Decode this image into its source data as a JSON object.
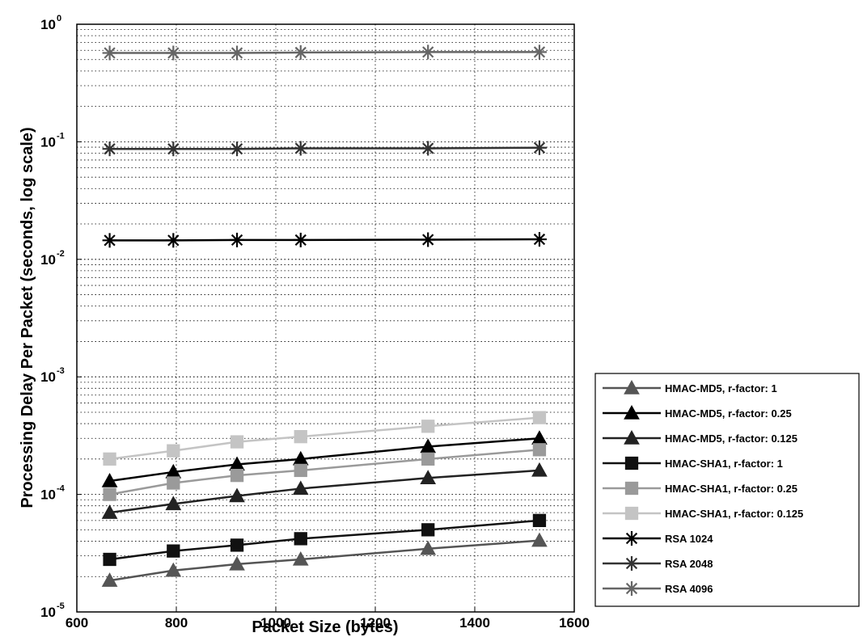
{
  "chart_data": {
    "type": "line",
    "title": "",
    "xlabel": "Packet Size (bytes)",
    "ylabel": "Processing Delay Per Packet (seconds, log scale)",
    "xlim": [
      600,
      1600
    ],
    "ylim": [
      1e-05,
      1
    ],
    "yscale": "log",
    "grid": true,
    "legend_position": "right",
    "x_ticks": [
      "600",
      "800",
      "1000",
      "1200",
      "1400",
      "1600"
    ],
    "y_ticks": [
      {
        "base": "10",
        "exp": "-5"
      },
      {
        "base": "10",
        "exp": "-4"
      },
      {
        "base": "10",
        "exp": "-3"
      },
      {
        "base": "10",
        "exp": "-2"
      },
      {
        "base": "10",
        "exp": "-1"
      },
      {
        "base": "10",
        "exp": "0"
      }
    ],
    "x": [
      666,
      794,
      922,
      1050,
      1306,
      1530
    ],
    "series": [
      {
        "name": "HMAC-MD5, r-factor: 1",
        "marker": "triangle",
        "color": "#555555",
        "values": [
          1.85e-05,
          2.25e-05,
          2.55e-05,
          2.8e-05,
          3.45e-05,
          4.05e-05
        ]
      },
      {
        "name": "HMAC-MD5, r-factor: 0.25",
        "marker": "triangle",
        "color": "#000000",
        "values": [
          0.00013,
          0.000155,
          0.00018,
          0.0002,
          0.000255,
          0.0003
        ]
      },
      {
        "name": "HMAC-MD5, r-factor: 0.125",
        "marker": "triangle",
        "color": "#222222",
        "values": [
          7e-05,
          8.3e-05,
          9.7e-05,
          0.000112,
          0.000138,
          0.00016
        ]
      },
      {
        "name": "HMAC-SHA1, r-factor: 1",
        "marker": "square",
        "color": "#111111",
        "values": [
          2.8e-05,
          3.3e-05,
          3.7e-05,
          4.2e-05,
          5e-05,
          6e-05
        ]
      },
      {
        "name": "HMAC-SHA1, r-factor: 0.25",
        "marker": "square",
        "color": "#9a9a9a",
        "values": [
          0.0001,
          0.000125,
          0.000145,
          0.00016,
          0.0002,
          0.00024
        ]
      },
      {
        "name": "HMAC-SHA1, r-factor: 0.125",
        "marker": "square",
        "color": "#c4c4c4",
        "values": [
          0.0002,
          0.000235,
          0.00028,
          0.00031,
          0.00038,
          0.00045
        ]
      },
      {
        "name": "RSA 1024",
        "marker": "asterisk",
        "color": "#000000",
        "values": [
          0.0145,
          0.0145,
          0.0146,
          0.0146,
          0.0147,
          0.0148
        ]
      },
      {
        "name": "RSA 2048",
        "marker": "asterisk",
        "color": "#333333",
        "values": [
          0.087,
          0.087,
          0.087,
          0.088,
          0.088,
          0.089
        ]
      },
      {
        "name": "RSA 4096",
        "marker": "asterisk",
        "color": "#666666",
        "values": [
          0.57,
          0.57,
          0.57,
          0.575,
          0.58,
          0.58
        ]
      }
    ]
  }
}
